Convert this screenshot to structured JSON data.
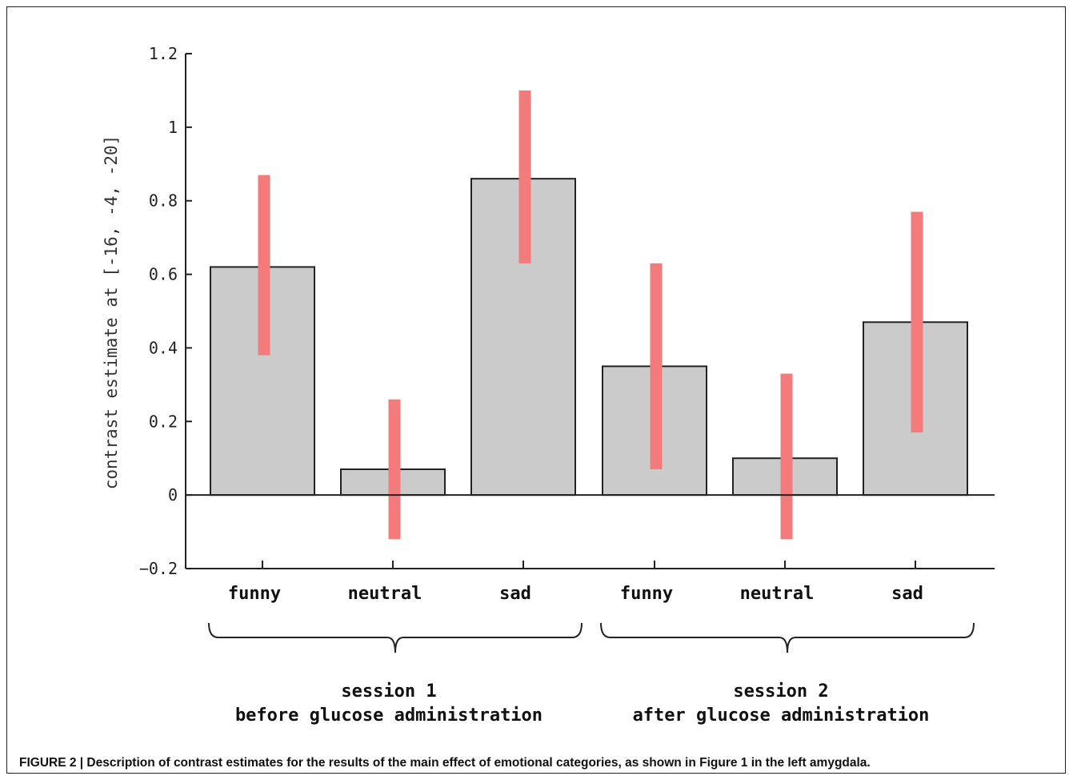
{
  "chart_data": {
    "type": "bar",
    "ylabel": "contrast estimate at [-16, -4, -20]",
    "xlabel": "",
    "ylim": [
      -0.2,
      1.2
    ],
    "yticks": [
      -0.2,
      0,
      0.2,
      0.4,
      0.6,
      0.8,
      1,
      1.2
    ],
    "ytick_labels": [
      "−0.2",
      "0",
      "0.2",
      "0.4",
      "0.6",
      "0.8",
      "1",
      "1.2"
    ],
    "categories": [
      "funny",
      "neutral",
      "sad",
      "funny",
      "neutral",
      "sad"
    ],
    "values": [
      0.62,
      0.07,
      0.86,
      0.35,
      0.1,
      0.47
    ],
    "error_bars": [
      {
        "low": 0.38,
        "high": 0.87
      },
      {
        "low": -0.12,
        "high": 0.26
      },
      {
        "low": 0.63,
        "high": 1.1
      },
      {
        "low": 0.07,
        "high": 0.63
      },
      {
        "low": -0.12,
        "high": 0.33
      },
      {
        "low": 0.17,
        "high": 0.77
      }
    ],
    "groups": [
      {
        "line1": "session 1",
        "line2": "before glucose administration",
        "bars": [
          0,
          1,
          2
        ]
      },
      {
        "line1": "session 2",
        "line2": "after glucose administration",
        "bars": [
          3,
          4,
          5
        ]
      }
    ],
    "colors": {
      "bar_fill": "#cbcbcb",
      "bar_stroke": "#222222",
      "error_bar": "#f37b7b",
      "axis": "#222222"
    },
    "grid": false
  },
  "caption": {
    "label": "FIGURE 2 | Description of contrast estimates for the results of the main effect of emotional categories, as shown in ",
    "ref": "Figure 1",
    "rest": " in the left amygdala."
  }
}
